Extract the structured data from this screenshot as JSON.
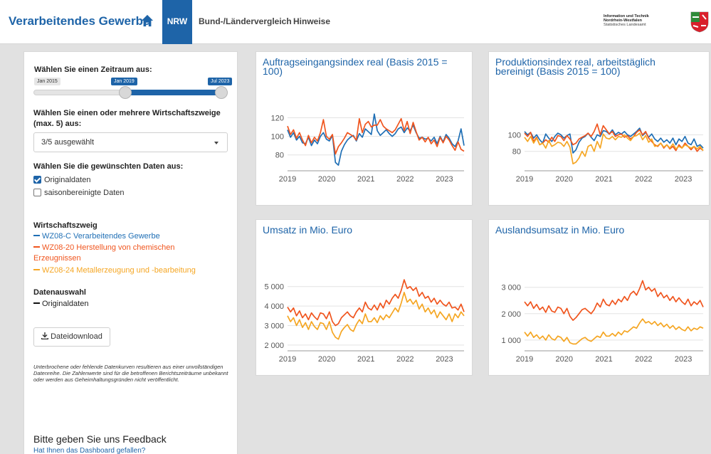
{
  "header": {
    "brand": "Verarbeitendes Gewerbe",
    "tabs": [
      {
        "label": "NRW",
        "active": true
      },
      {
        "label": "Bund-/Ländervergleich",
        "active": false
      },
      {
        "label": "Hinweise",
        "active": false
      }
    ],
    "org": {
      "line1": "Information und Technik",
      "line2": "Nordrhein-Westfalen",
      "line3": "Statistisches Landesamt"
    }
  },
  "sidebar": {
    "period_label": "Wählen Sie einen Zeitraum aus:",
    "slider": {
      "min": "Jan 2015",
      "from": "Jan 2019",
      "to": "Jul 2023"
    },
    "branches_label": "Wählen Sie einen oder mehrere Wirtschaftszweige (max. 5) aus:",
    "branches_selected": "3/5 ausgewählt",
    "data_label": "Wählen Sie die gewünschten Daten aus:",
    "checkbox_original": {
      "label": "Originaldaten",
      "checked": true
    },
    "checkbox_seasonal": {
      "label": "saisonbereinigte Daten",
      "checked": false
    },
    "legend_title": "Wirtschaftszweig",
    "legend": [
      {
        "label": "WZ08-C Verarbeitendes Gewerbe",
        "color": "#1f6fb5"
      },
      {
        "label": "WZ08-20 Herstellung von chemischen Erzeugnissen",
        "color": "#f0551e"
      },
      {
        "label": "WZ08-24 Metallerzeugung und -bearbeitung",
        "color": "#f5a623"
      }
    ],
    "datasel_title": "Datenauswahl",
    "datasel_item": "Originaldaten",
    "download_label": "Dateidownload",
    "note": "Unterbrochene oder fehlende Datenkurven resultieren aus einer unvollständigen Datenreihe. Die Zahlenwerte sind für die betroffenen Berichtszeiträume unbekannt oder werden aus Geheimhaltungsgründen nicht veröffentlicht.",
    "feedback_title": "Bitte geben Sie uns Feedback",
    "feedback_link": "Hat Ihnen das Dashboard gefallen?"
  },
  "chart_data": [
    {
      "type": "line",
      "title": "Auftragseingangsindex real (Basis 2015 = 100)",
      "xlabel": "",
      "ylabel": "",
      "x_ticks": [
        "2019",
        "2020",
        "2021",
        "2022",
        "2023"
      ],
      "y_ticks": [
        80,
        100,
        120
      ],
      "ylim": [
        66,
        128
      ],
      "xlim": [
        2019.0,
        2023.5
      ],
      "series": [
        {
          "name": "WZ08-C Verarbeitendes Gewerbe",
          "color": "#1f6fb5",
          "values": [
            107,
            99,
            104,
            96,
            100,
            93,
            92,
            99,
            90,
            96,
            92,
            100,
            104,
            97,
            95,
            101,
            72,
            69,
            84,
            91,
            96,
            99,
            101,
            95,
            103,
            99,
            108,
            105,
            102,
            124,
            106,
            101,
            104,
            107,
            103,
            100,
            103,
            108,
            110,
            104,
            109,
            106,
            112,
            104,
            98,
            99,
            97,
            98,
            95,
            99,
            92,
            100,
            94,
            102,
            98,
            92,
            89,
            95,
            108,
            90
          ]
        },
        {
          "name": "WZ08-20 Herstellung von chemischen Erzeugnissen",
          "color": "#f0551e",
          "values": [
            111,
            102,
            107,
            98,
            104,
            96,
            90,
            101,
            93,
            99,
            95,
            104,
            118,
            100,
            97,
            102,
            81,
            89,
            93,
            98,
            104,
            102,
            100,
            96,
            119,
            104,
            113,
            116,
            110,
            112,
            112,
            118,
            111,
            108,
            106,
            104,
            107,
            113,
            119,
            106,
            116,
            103,
            115,
            105,
            96,
            99,
            94,
            99,
            92,
            96,
            89,
            99,
            93,
            100,
            96,
            90,
            85,
            94,
            86,
            84
          ]
        }
      ]
    },
    {
      "type": "line",
      "title": "Produktionsindex real, arbeitstäglich bereinigt (Basis 2015 = 100)",
      "xlabel": "",
      "ylabel": "",
      "x_ticks": [
        "2019",
        "2020",
        "2021",
        "2022",
        "2023"
      ],
      "y_ticks": [
        80,
        100
      ],
      "ylim": [
        60,
        121
      ],
      "xlim": [
        2019.0,
        2023.5
      ],
      "series": [
        {
          "name": "WZ08-C Verarbeitendes Gewerbe",
          "color": "#1f6fb5",
          "values": [
            104,
            100,
            103,
            96,
            100,
            94,
            90,
            101,
            96,
            92,
            98,
            102,
            100,
            96,
            99,
            101,
            78,
            82,
            91,
            96,
            98,
            102,
            97,
            93,
            100,
            98,
            105,
            104,
            101,
            106,
            100,
            103,
            101,
            104,
            100,
            98,
            101,
            104,
            108,
            99,
            103,
            97,
            101,
            95,
            92,
            96,
            91,
            94,
            90,
            96,
            88,
            95,
            92,
            98,
            90,
            88,
            95,
            86,
            88,
            84
          ]
        },
        {
          "name": "WZ08-20 Herstellung von chemischen Erzeugnissen",
          "color": "#f0551e",
          "values": [
            102,
            98,
            103,
            92,
            97,
            88,
            90,
            94,
            91,
            97,
            92,
            99,
            98,
            93,
            99,
            95,
            88,
            90,
            95,
            97,
            99,
            102,
            98,
            104,
            113,
            100,
            111,
            106,
            101,
            104,
            98,
            100,
            101,
            97,
            99,
            95,
            98,
            103,
            106,
            100,
            104,
            96,
            92,
            88,
            86,
            90,
            84,
            88,
            83,
            86,
            81,
            88,
            84,
            90,
            86,
            82,
            86,
            80,
            84,
            81
          ]
        },
        {
          "name": "WZ08-24 Metallerzeugung und -bearbeitung",
          "color": "#f5a623",
          "values": [
            97,
            92,
            98,
            90,
            96,
            88,
            90,
            84,
            93,
            86,
            88,
            91,
            90,
            86,
            92,
            85,
            65,
            67,
            72,
            80,
            74,
            86,
            88,
            80,
            92,
            84,
            101,
            96,
            95,
            98,
            94,
            98,
            97,
            100,
            96,
            93,
            98,
            99,
            102,
            94,
            99,
            91,
            95,
            86,
            87,
            90,
            85,
            88,
            84,
            89,
            83,
            86,
            84,
            88,
            86,
            84,
            86,
            83,
            86,
            81
          ]
        }
      ]
    },
    {
      "type": "line",
      "title": "Umsatz in Mio. Euro",
      "xlabel": "",
      "ylabel": "",
      "x_ticks": [
        "2019",
        "2020",
        "2021",
        "2022",
        "2023"
      ],
      "y_ticks": [
        2000,
        3000,
        4000,
        5000
      ],
      "y_tick_labels": [
        "2 000",
        "3 000",
        "4 000",
        "5 000"
      ],
      "ylim": [
        1850,
        5500
      ],
      "xlim": [
        2019.0,
        2023.5
      ],
      "series": [
        {
          "name": "WZ08-20 Herstellung von chemischen Erzeugnissen",
          "color": "#f0551e",
          "values": [
            3950,
            3700,
            3900,
            3500,
            3750,
            3400,
            3600,
            3300,
            3650,
            3450,
            3300,
            3650,
            3600,
            3350,
            3700,
            3200,
            3000,
            3100,
            3400,
            3550,
            3700,
            3500,
            3400,
            3700,
            3900,
            3700,
            4200,
            3900,
            3800,
            4050,
            3800,
            4150,
            3900,
            4300,
            4100,
            4400,
            4600,
            4400,
            4800,
            5350,
            4900,
            5000,
            4800,
            4950,
            4500,
            4700,
            4400,
            4500,
            4200,
            4400,
            4100,
            4300,
            4100,
            4000,
            4200,
            3900,
            3950,
            3800,
            4100,
            3700
          ]
        },
        {
          "name": "WZ08-24 Metallerzeugung und -bearbeitung",
          "color": "#f5a623",
          "values": [
            3500,
            3200,
            3400,
            3000,
            3300,
            2900,
            3150,
            2800,
            3200,
            2950,
            2800,
            3150,
            3100,
            2800,
            3200,
            2650,
            2400,
            2300,
            2700,
            2900,
            3050,
            2800,
            2700,
            3050,
            3300,
            3100,
            3600,
            3200,
            3200,
            3400,
            3150,
            3500,
            3300,
            3550,
            3400,
            3650,
            3900,
            3700,
            4150,
            4700,
            4200,
            4350,
            4100,
            4300,
            3850,
            4100,
            3700,
            3900,
            3600,
            3800,
            3400,
            3700,
            3500,
            3300,
            3600,
            3200,
            3600,
            3400,
            3700,
            3500
          ]
        }
      ]
    },
    {
      "type": "line",
      "title": "Auslandsumsatz in Mio. Euro",
      "xlabel": "",
      "ylabel": "",
      "x_ticks": [
        "2019",
        "2020",
        "2021",
        "2022",
        "2023"
      ],
      "y_ticks": [
        1000,
        2000,
        3000
      ],
      "y_tick_labels": [
        "1 000",
        "2 000",
        "3 000"
      ],
      "ylim": [
        700,
        3450
      ],
      "xlim": [
        2019.0,
        2023.5
      ],
      "series": [
        {
          "name": "WZ08-20 Herstellung von chemischen Erzeugnissen",
          "color": "#f0551e",
          "values": [
            2450,
            2300,
            2450,
            2200,
            2350,
            2150,
            2250,
            2050,
            2300,
            2100,
            2050,
            2250,
            2200,
            2000,
            2200,
            1900,
            1750,
            1850,
            2000,
            2150,
            2200,
            2100,
            2000,
            2150,
            2400,
            2250,
            2550,
            2350,
            2300,
            2500,
            2350,
            2550,
            2450,
            2650,
            2500,
            2750,
            2850,
            2700,
            2950,
            3250,
            2900,
            3000,
            2850,
            2950,
            2650,
            2800,
            2600,
            2700,
            2500,
            2650,
            2450,
            2600,
            2450,
            2350,
            2550,
            2300,
            2450,
            2350,
            2500,
            2250
          ]
        },
        {
          "name": "WZ08-24 Metallerzeugung und -bearbeitung",
          "color": "#f5a623",
          "values": [
            1300,
            1150,
            1300,
            1100,
            1200,
            1050,
            1150,
            1000,
            1200,
            1050,
            1000,
            1150,
            1100,
            950,
            1100,
            900,
            850,
            850,
            950,
            1050,
            1100,
            1000,
            950,
            1050,
            1150,
            1100,
            1300,
            1150,
            1150,
            1250,
            1150,
            1300,
            1200,
            1350,
            1300,
            1400,
            1500,
            1450,
            1650,
            1800,
            1650,
            1700,
            1600,
            1700,
            1550,
            1650,
            1500,
            1600,
            1450,
            1550,
            1400,
            1500,
            1400,
            1350,
            1500,
            1350,
            1450,
            1400,
            1500,
            1450
          ]
        }
      ]
    }
  ]
}
